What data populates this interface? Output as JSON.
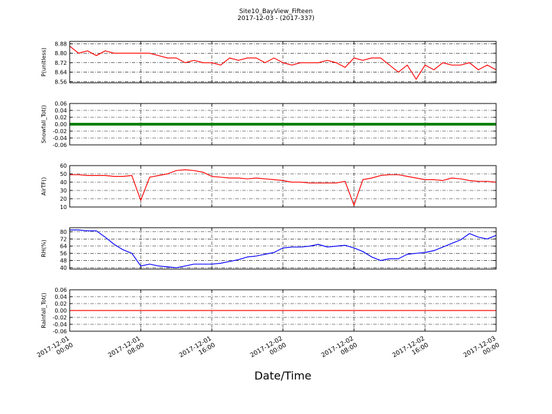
{
  "title": "Site10_BayView_Fifteen",
  "subtitle": "2017-12-03 - (2017-337)",
  "xlabel": "Date/Time",
  "chart_data": [
    {
      "type": "line",
      "ylabel": "P(unitless)",
      "grid": true,
      "x": [
        "2017-12-01 00:00",
        "2017-12-01 01:00",
        "2017-12-01 02:00",
        "2017-12-01 03:00",
        "2017-12-01 04:00",
        "2017-12-01 05:00",
        "2017-12-01 06:00",
        "2017-12-01 07:00",
        "2017-12-01 08:00",
        "2017-12-01 09:00",
        "2017-12-01 10:00",
        "2017-12-01 11:00",
        "2017-12-01 12:00",
        "2017-12-01 13:00",
        "2017-12-01 14:00",
        "2017-12-01 15:00",
        "2017-12-01 16:00",
        "2017-12-01 17:00",
        "2017-12-01 18:00",
        "2017-12-01 19:00",
        "2017-12-01 20:00",
        "2017-12-01 21:00",
        "2017-12-01 22:00",
        "2017-12-01 23:00",
        "2017-12-02 00:00",
        "2017-12-02 01:00",
        "2017-12-02 02:00",
        "2017-12-02 03:00",
        "2017-12-02 04:00",
        "2017-12-02 05:00",
        "2017-12-02 06:00",
        "2017-12-02 07:00",
        "2017-12-02 08:00",
        "2017-12-02 09:00",
        "2017-12-02 10:00",
        "2017-12-02 11:00",
        "2017-12-02 12:00",
        "2017-12-02 13:00",
        "2017-12-02 14:00",
        "2017-12-02 15:00",
        "2017-12-02 16:00",
        "2017-12-02 17:00",
        "2017-12-02 18:00",
        "2017-12-02 19:00",
        "2017-12-02 20:00",
        "2017-12-02 21:00",
        "2017-12-02 22:00",
        "2017-12-02 23:00",
        "2017-12-03 00:00"
      ],
      "series": [
        {
          "color": "#ff0000",
          "values": [
            8.86,
            8.8,
            8.82,
            8.78,
            8.82,
            8.8,
            8.8,
            8.8,
            8.8,
            8.8,
            8.78,
            8.76,
            8.76,
            8.72,
            8.74,
            8.72,
            8.72,
            8.7,
            8.76,
            8.74,
            8.76,
            8.76,
            8.72,
            8.76,
            8.72,
            8.7,
            8.72,
            8.72,
            8.72,
            8.74,
            8.72,
            8.68,
            8.76,
            8.74,
            8.76,
            8.76,
            8.7,
            8.64,
            8.7,
            8.58,
            8.7,
            8.66,
            8.72,
            8.7,
            8.7,
            8.72,
            8.66,
            8.7,
            8.66
          ]
        }
      ],
      "xlim": [
        "2017-12-01 00:00",
        "2017-12-03 00:00"
      ],
      "xticks": [
        "2017-12-01 00:00",
        "2017-12-01 08:00",
        "2017-12-01 16:00",
        "2017-12-02 00:00",
        "2017-12-02 08:00",
        "2017-12-02 16:00",
        "2017-12-03 00:00"
      ],
      "ylim": [
        8.55,
        8.9
      ],
      "yticks": [
        8.56,
        8.64,
        8.72,
        {
          "value": 8.8,
          "label": "8.80"
        },
        8.88
      ]
    },
    {
      "type": "line",
      "ylabel": "Snowfall_Tot()",
      "grid": true,
      "markers": true,
      "x": [
        "2017-12-01 00:00",
        "2017-12-01 01:00",
        "2017-12-01 02:00",
        "2017-12-01 03:00",
        "2017-12-01 04:00",
        "2017-12-01 05:00",
        "2017-12-01 06:00",
        "2017-12-01 07:00",
        "2017-12-01 08:00",
        "2017-12-01 09:00",
        "2017-12-01 10:00",
        "2017-12-01 11:00",
        "2017-12-01 12:00",
        "2017-12-01 13:00",
        "2017-12-01 14:00",
        "2017-12-01 15:00",
        "2017-12-01 16:00",
        "2017-12-01 17:00",
        "2017-12-01 18:00",
        "2017-12-01 19:00",
        "2017-12-01 20:00",
        "2017-12-01 21:00",
        "2017-12-01 22:00",
        "2017-12-01 23:00",
        "2017-12-02 00:00",
        "2017-12-02 01:00",
        "2017-12-02 02:00",
        "2017-12-02 03:00",
        "2017-12-02 04:00",
        "2017-12-02 05:00",
        "2017-12-02 06:00",
        "2017-12-02 07:00",
        "2017-12-02 08:00",
        "2017-12-02 09:00",
        "2017-12-02 10:00",
        "2017-12-02 11:00",
        "2017-12-02 12:00",
        "2017-12-02 13:00",
        "2017-12-02 14:00",
        "2017-12-02 15:00",
        "2017-12-02 16:00",
        "2017-12-02 17:00",
        "2017-12-02 18:00",
        "2017-12-02 19:00",
        "2017-12-02 20:00",
        "2017-12-02 21:00",
        "2017-12-02 22:00",
        "2017-12-02 23:00",
        "2017-12-03 00:00"
      ],
      "series": [
        {
          "color": "#008000",
          "values": [
            0,
            0,
            0,
            0,
            0,
            0,
            0,
            0,
            0,
            0,
            0,
            0,
            0,
            0,
            0,
            0,
            0,
            0,
            0,
            0,
            0,
            0,
            0,
            0,
            0,
            0,
            0,
            0,
            0,
            0,
            0,
            0,
            0,
            0,
            0,
            0,
            0,
            0,
            0,
            0,
            0,
            0,
            0,
            0,
            0,
            0,
            0,
            0,
            0
          ]
        }
      ],
      "xlim": [
        "2017-12-01 00:00",
        "2017-12-03 00:00"
      ],
      "xticks": [
        "2017-12-01 00:00",
        "2017-12-01 08:00",
        "2017-12-01 16:00",
        "2017-12-02 00:00",
        "2017-12-02 08:00",
        "2017-12-02 16:00",
        "2017-12-03 00:00"
      ],
      "ylim": [
        -0.06,
        0.06
      ],
      "yticks": [
        -0.06,
        -0.04,
        -0.02,
        {
          "value": 0,
          "label": "0.00"
        },
        0.02,
        0.04,
        0.06
      ]
    },
    {
      "type": "line",
      "ylabel": "AirTF()",
      "grid": true,
      "x": [
        "2017-12-01 00:00",
        "2017-12-01 01:00",
        "2017-12-01 02:00",
        "2017-12-01 03:00",
        "2017-12-01 04:00",
        "2017-12-01 05:00",
        "2017-12-01 06:00",
        "2017-12-01 07:00",
        "2017-12-01 08:00",
        "2017-12-01 09:00",
        "2017-12-01 10:00",
        "2017-12-01 11:00",
        "2017-12-01 12:00",
        "2017-12-01 13:00",
        "2017-12-01 14:00",
        "2017-12-01 15:00",
        "2017-12-01 16:00",
        "2017-12-01 17:00",
        "2017-12-01 18:00",
        "2017-12-01 19:00",
        "2017-12-01 20:00",
        "2017-12-01 21:00",
        "2017-12-01 22:00",
        "2017-12-01 23:00",
        "2017-12-02 00:00",
        "2017-12-02 01:00",
        "2017-12-02 02:00",
        "2017-12-02 03:00",
        "2017-12-02 04:00",
        "2017-12-02 05:00",
        "2017-12-02 06:00",
        "2017-12-02 07:00",
        "2017-12-02 08:00",
        "2017-12-02 09:00",
        "2017-12-02 10:00",
        "2017-12-02 11:00",
        "2017-12-02 12:00",
        "2017-12-02 13:00",
        "2017-12-02 14:00",
        "2017-12-02 15:00",
        "2017-12-02 16:00",
        "2017-12-02 17:00",
        "2017-12-02 18:00",
        "2017-12-02 19:00",
        "2017-12-02 20:00",
        "2017-12-02 21:00",
        "2017-12-02 22:00",
        "2017-12-02 23:00",
        "2017-12-03 00:00"
      ],
      "series": [
        {
          "color": "#ff0000",
          "values": [
            49,
            49,
            48,
            48,
            48,
            47,
            47,
            48,
            18,
            46,
            48,
            50,
            54,
            55,
            54,
            52,
            47,
            46,
            45,
            45,
            44,
            45,
            44,
            43,
            42,
            40,
            40,
            39,
            39,
            39,
            39,
            41,
            12,
            43,
            45,
            48,
            49,
            49,
            47,
            45,
            43,
            43,
            42,
            45,
            44,
            42,
            41,
            41,
            40
          ]
        }
      ],
      "xlim": [
        "2017-12-01 00:00",
        "2017-12-03 00:00"
      ],
      "xticks": [
        "2017-12-01 00:00",
        "2017-12-01 08:00",
        "2017-12-01 16:00",
        "2017-12-02 00:00",
        "2017-12-02 08:00",
        "2017-12-02 16:00",
        "2017-12-03 00:00"
      ],
      "ylim": [
        10,
        60
      ],
      "yticks": [
        10,
        20,
        30,
        40,
        50,
        60
      ]
    },
    {
      "type": "line",
      "ylabel": "RH(%)",
      "grid": true,
      "x": [
        "2017-12-01 00:00",
        "2017-12-01 01:00",
        "2017-12-01 02:00",
        "2017-12-01 03:00",
        "2017-12-01 04:00",
        "2017-12-01 05:00",
        "2017-12-01 06:00",
        "2017-12-01 07:00",
        "2017-12-01 08:00",
        "2017-12-01 09:00",
        "2017-12-01 10:00",
        "2017-12-01 11:00",
        "2017-12-01 12:00",
        "2017-12-01 13:00",
        "2017-12-01 14:00",
        "2017-12-01 15:00",
        "2017-12-01 16:00",
        "2017-12-01 17:00",
        "2017-12-01 18:00",
        "2017-12-01 19:00",
        "2017-12-01 20:00",
        "2017-12-01 21:00",
        "2017-12-01 22:00",
        "2017-12-01 23:00",
        "2017-12-02 00:00",
        "2017-12-02 01:00",
        "2017-12-02 02:00",
        "2017-12-02 03:00",
        "2017-12-02 04:00",
        "2017-12-02 05:00",
        "2017-12-02 06:00",
        "2017-12-02 07:00",
        "2017-12-02 08:00",
        "2017-12-02 09:00",
        "2017-12-02 10:00",
        "2017-12-02 11:00",
        "2017-12-02 12:00",
        "2017-12-02 13:00",
        "2017-12-02 14:00",
        "2017-12-02 15:00",
        "2017-12-02 16:00",
        "2017-12-02 17:00",
        "2017-12-02 18:00",
        "2017-12-02 19:00",
        "2017-12-02 20:00",
        "2017-12-02 21:00",
        "2017-12-02 22:00",
        "2017-12-02 23:00",
        "2017-12-03 00:00"
      ],
      "series": [
        {
          "color": "#0000ff",
          "values": [
            82,
            82,
            81,
            81,
            74,
            66,
            60,
            56,
            42,
            44,
            42,
            41,
            40,
            42,
            44,
            44,
            44,
            45,
            47,
            49,
            52,
            53,
            55,
            57,
            62,
            63,
            63,
            64,
            66,
            63,
            64,
            65,
            62,
            58,
            52,
            48,
            50,
            50,
            55,
            56,
            57,
            59,
            63,
            67,
            71,
            78,
            74,
            72,
            76
          ]
        }
      ],
      "xlim": [
        "2017-12-01 00:00",
        "2017-12-03 00:00"
      ],
      "xticks": [
        "2017-12-01 00:00",
        "2017-12-01 08:00",
        "2017-12-01 16:00",
        "2017-12-02 00:00",
        "2017-12-02 08:00",
        "2017-12-02 16:00",
        "2017-12-03 00:00"
      ],
      "ylim": [
        38.5,
        84.5
      ],
      "yticks": [
        40,
        48,
        56,
        64,
        72,
        80
      ]
    },
    {
      "type": "line",
      "ylabel": "Rainfall_Tot()",
      "grid": true,
      "x": [
        "2017-12-01 00:00",
        "2017-12-01 01:00",
        "2017-12-01 02:00",
        "2017-12-01 03:00",
        "2017-12-01 04:00",
        "2017-12-01 05:00",
        "2017-12-01 06:00",
        "2017-12-01 07:00",
        "2017-12-01 08:00",
        "2017-12-01 09:00",
        "2017-12-01 10:00",
        "2017-12-01 11:00",
        "2017-12-01 12:00",
        "2017-12-01 13:00",
        "2017-12-01 14:00",
        "2017-12-01 15:00",
        "2017-12-01 16:00",
        "2017-12-01 17:00",
        "2017-12-01 18:00",
        "2017-12-01 19:00",
        "2017-12-01 20:00",
        "2017-12-01 21:00",
        "2017-12-01 22:00",
        "2017-12-01 23:00",
        "2017-12-02 00:00",
        "2017-12-02 01:00",
        "2017-12-02 02:00",
        "2017-12-02 03:00",
        "2017-12-02 04:00",
        "2017-12-02 05:00",
        "2017-12-02 06:00",
        "2017-12-02 07:00",
        "2017-12-02 08:00",
        "2017-12-02 09:00",
        "2017-12-02 10:00",
        "2017-12-02 11:00",
        "2017-12-02 12:00",
        "2017-12-02 13:00",
        "2017-12-02 14:00",
        "2017-12-02 15:00",
        "2017-12-02 16:00",
        "2017-12-02 17:00",
        "2017-12-02 18:00",
        "2017-12-02 19:00",
        "2017-12-02 20:00",
        "2017-12-02 21:00",
        "2017-12-02 22:00",
        "2017-12-02 23:00",
        "2017-12-03 00:00"
      ],
      "series": [
        {
          "color": "#ff0000",
          "values": [
            0,
            0,
            0,
            0,
            0,
            0,
            0,
            0,
            0,
            0,
            0,
            0,
            0,
            0,
            0,
            0,
            0,
            0,
            0,
            0,
            0,
            0,
            0,
            0,
            0,
            0,
            0,
            0,
            0,
            0,
            0,
            0,
            0,
            0,
            0,
            0,
            0,
            0,
            0,
            0,
            0,
            0,
            0,
            0,
            0,
            0,
            0,
            0,
            0
          ]
        }
      ],
      "xlim": [
        "2017-12-01 00:00",
        "2017-12-03 00:00"
      ],
      "xticks": [
        {
          "value": "2017-12-01 00:00",
          "label": "2017-12-01\n00:00"
        },
        {
          "value": "2017-12-01 08:00",
          "label": "2017-12-01\n08:00"
        },
        {
          "value": "2017-12-01 16:00",
          "label": "2017-12-01\n16:00"
        },
        {
          "value": "2017-12-02 00:00",
          "label": "2017-12-02\n00:00"
        },
        {
          "value": "2017-12-02 08:00",
          "label": "2017-12-02\n08:00"
        },
        {
          "value": "2017-12-02 16:00",
          "label": "2017-12-02\n16:00"
        },
        {
          "value": "2017-12-03 00:00",
          "label": "2017-12-03\n00:00"
        }
      ],
      "ylim": [
        -0.06,
        0.06
      ],
      "yticks": [
        -0.06,
        -0.04,
        -0.02,
        {
          "value": 0,
          "label": "0.00"
        },
        0.02,
        0.04,
        0.06
      ]
    }
  ]
}
